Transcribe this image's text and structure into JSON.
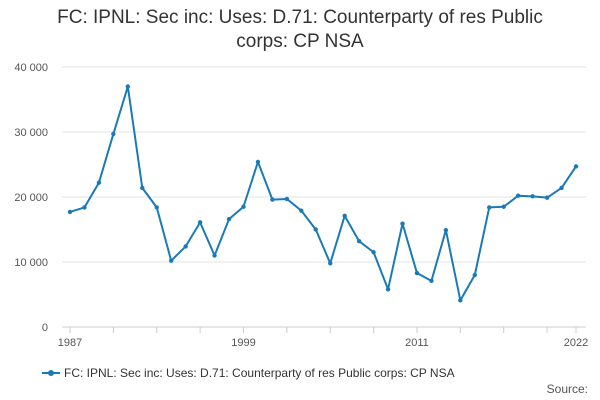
{
  "chart_data": {
    "type": "line",
    "title_lines": [
      "FC: IPNL: Sec inc: Uses: D.71: Counterparty of res Public",
      "corps: CP NSA"
    ],
    "xlabel": "",
    "ylabel": "",
    "x_ticks": [
      "1987",
      "1999",
      "2011",
      "2022"
    ],
    "y_ticks": [
      "0",
      "10 000",
      "20 000",
      "30 000",
      "40 000"
    ],
    "ylim": [
      0,
      40000
    ],
    "xlim": [
      1987,
      2022
    ],
    "grid": "horizontal",
    "legend_position": "bottom",
    "series": [
      {
        "name": "FC: IPNL: Sec inc: Uses: D.71: Counterparty of res Public corps: CP NSA",
        "color": "#1a7ab8",
        "x": [
          1987,
          1988,
          1989,
          1990,
          1991,
          1992,
          1993,
          1994,
          1995,
          1996,
          1997,
          1998,
          1999,
          2000,
          2001,
          2002,
          2003,
          2004,
          2005,
          2006,
          2007,
          2008,
          2009,
          2010,
          2011,
          2012,
          2013,
          2014,
          2015,
          2016,
          2017,
          2018,
          2019,
          2020,
          2021,
          2022
        ],
        "values": [
          17700,
          18400,
          22200,
          29700,
          37000,
          21400,
          18400,
          10200,
          12400,
          16100,
          11000,
          16600,
          18500,
          25400,
          19600,
          19700,
          17900,
          15000,
          9800,
          17100,
          13200,
          11500,
          5800,
          15900,
          8300,
          7100,
          14900,
          4100,
          8000,
          18400,
          18500,
          20200,
          20100,
          19900,
          21400,
          24700
        ]
      }
    ]
  },
  "legend": {
    "label": "FC: IPNL: Sec inc: Uses: D.71: Counterparty of res Public corps: CP NSA"
  },
  "source": {
    "label": "Source:"
  }
}
